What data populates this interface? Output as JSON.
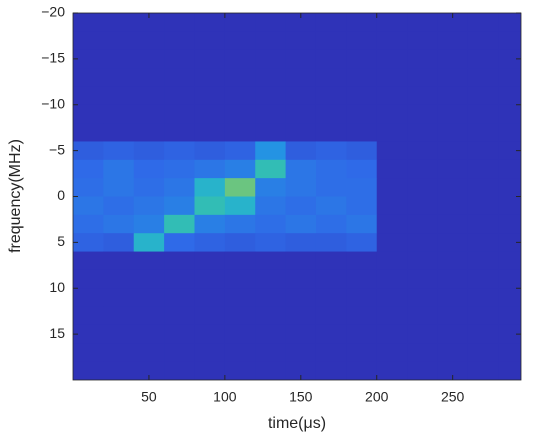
{
  "chart_data": {
    "type": "spectrogram",
    "xlabel": "time(μs)",
    "ylabel": "frequency(MHz)",
    "xlim": [
      0,
      295
    ],
    "ylim": [
      -20,
      20
    ],
    "y_reversed": true,
    "xticks": [
      50,
      100,
      150,
      200,
      250
    ],
    "yticks": [
      {
        "value": -20,
        "label": "−20"
      },
      {
        "value": -15,
        "label": "−15"
      },
      {
        "value": -10,
        "label": "−10"
      },
      {
        "value": -5,
        "label": "−5"
      },
      0,
      5,
      10,
      15
    ],
    "x_edges": [
      0,
      20,
      40,
      60,
      80,
      100,
      120,
      140,
      160,
      180,
      200,
      220,
      240,
      260,
      280,
      300
    ],
    "y_edges": [
      -20,
      -18,
      -16,
      -14,
      -12,
      -10,
      -8,
      -6,
      -4,
      -2,
      0,
      2,
      4,
      6,
      8,
      10,
      12,
      14,
      16,
      18,
      20
    ],
    "colormap": [
      [
        0,
        "#2a1e9e"
      ],
      [
        0.12,
        "#2f33b8"
      ],
      [
        0.35,
        "#2f6ae8"
      ],
      [
        0.5,
        "#1ea8e0"
      ],
      [
        0.65,
        "#3cc8a0"
      ],
      [
        0.8,
        "#c8c040"
      ],
      [
        1,
        "#f9fb0e"
      ]
    ],
    "values": [
      [
        0.12,
        0.12,
        0.12,
        0.12,
        0.12,
        0.12,
        0.12,
        0.12,
        0.12,
        0.12,
        0.12,
        0.12,
        0.12,
        0.12,
        0.12
      ],
      [
        0.12,
        0.12,
        0.12,
        0.12,
        0.12,
        0.12,
        0.12,
        0.12,
        0.12,
        0.12,
        0.12,
        0.12,
        0.12,
        0.12,
        0.12
      ],
      [
        0.12,
        0.12,
        0.12,
        0.12,
        0.12,
        0.12,
        0.12,
        0.12,
        0.12,
        0.12,
        0.12,
        0.12,
        0.12,
        0.12,
        0.12
      ],
      [
        0.12,
        0.12,
        0.12,
        0.12,
        0.12,
        0.12,
        0.12,
        0.12,
        0.12,
        0.12,
        0.12,
        0.12,
        0.12,
        0.12,
        0.12
      ],
      [
        0.12,
        0.12,
        0.12,
        0.12,
        0.12,
        0.12,
        0.12,
        0.12,
        0.12,
        0.12,
        0.12,
        0.12,
        0.12,
        0.12,
        0.12
      ],
      [
        0.12,
        0.12,
        0.12,
        0.12,
        0.12,
        0.12,
        0.12,
        0.12,
        0.12,
        0.12,
        0.12,
        0.12,
        0.12,
        0.12,
        0.12
      ],
      [
        0.12,
        0.12,
        0.12,
        0.12,
        0.12,
        0.12,
        0.12,
        0.12,
        0.12,
        0.12,
        0.12,
        0.12,
        0.12,
        0.12,
        0.12
      ],
      [
        0.3,
        0.32,
        0.3,
        0.32,
        0.3,
        0.32,
        0.45,
        0.3,
        0.32,
        0.3,
        0.12,
        0.12,
        0.12,
        0.12,
        0.12
      ],
      [
        0.35,
        0.38,
        0.35,
        0.36,
        0.38,
        0.4,
        0.6,
        0.38,
        0.36,
        0.35,
        0.12,
        0.12,
        0.12,
        0.12,
        0.12
      ],
      [
        0.36,
        0.38,
        0.36,
        0.38,
        0.55,
        0.7,
        0.4,
        0.38,
        0.36,
        0.36,
        0.12,
        0.12,
        0.12,
        0.12,
        0.12
      ],
      [
        0.38,
        0.36,
        0.38,
        0.4,
        0.6,
        0.55,
        0.38,
        0.36,
        0.38,
        0.36,
        0.12,
        0.12,
        0.12,
        0.12,
        0.12
      ],
      [
        0.36,
        0.38,
        0.4,
        0.6,
        0.4,
        0.38,
        0.36,
        0.38,
        0.36,
        0.38,
        0.12,
        0.12,
        0.12,
        0.12,
        0.12
      ],
      [
        0.32,
        0.3,
        0.55,
        0.35,
        0.32,
        0.3,
        0.32,
        0.3,
        0.3,
        0.32,
        0.12,
        0.12,
        0.12,
        0.12,
        0.12
      ],
      [
        0.12,
        0.12,
        0.12,
        0.12,
        0.12,
        0.12,
        0.12,
        0.12,
        0.12,
        0.12,
        0.12,
        0.12,
        0.12,
        0.12,
        0.12
      ],
      [
        0.12,
        0.12,
        0.12,
        0.12,
        0.12,
        0.12,
        0.12,
        0.12,
        0.12,
        0.12,
        0.12,
        0.12,
        0.12,
        0.12,
        0.12
      ],
      [
        0.12,
        0.12,
        0.12,
        0.12,
        0.12,
        0.12,
        0.12,
        0.12,
        0.12,
        0.12,
        0.12,
        0.12,
        0.12,
        0.12,
        0.12
      ],
      [
        0.12,
        0.12,
        0.12,
        0.12,
        0.12,
        0.12,
        0.12,
        0.12,
        0.12,
        0.12,
        0.12,
        0.12,
        0.12,
        0.12,
        0.12
      ],
      [
        0.12,
        0.12,
        0.12,
        0.12,
        0.12,
        0.12,
        0.12,
        0.12,
        0.12,
        0.12,
        0.12,
        0.12,
        0.12,
        0.12,
        0.12
      ],
      [
        0.12,
        0.12,
        0.12,
        0.12,
        0.12,
        0.12,
        0.12,
        0.12,
        0.12,
        0.12,
        0.12,
        0.12,
        0.12,
        0.12,
        0.12
      ],
      [
        0.12,
        0.12,
        0.12,
        0.12,
        0.12,
        0.12,
        0.12,
        0.12,
        0.12,
        0.12,
        0.12,
        0.12,
        0.12,
        0.12,
        0.12
      ]
    ]
  }
}
